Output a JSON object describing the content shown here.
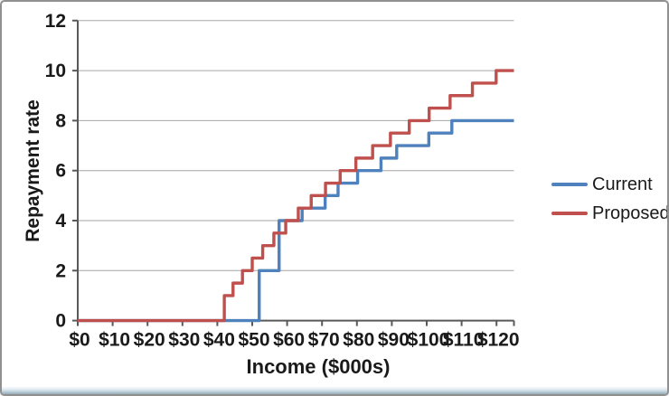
{
  "window": {
    "background": "#FFFFFF",
    "border_color": "#909090",
    "footer_edge_colors": [
      "#FFFFFF",
      "#C9DAE3",
      "#93AAB6"
    ]
  },
  "chart_data": {
    "type": "line",
    "subtype": "step",
    "title": "",
    "xlabel": "Income ($000s)",
    "ylabel": "Repayment rate",
    "xlim": [
      0,
      125
    ],
    "ylim": [
      0,
      12
    ],
    "x_tick_values": [
      0,
      10,
      20,
      30,
      40,
      50,
      60,
      70,
      80,
      90,
      100,
      110,
      120
    ],
    "x_tick_labels": [
      "$0",
      "$10",
      "$20",
      "$30",
      "$40",
      "$50",
      "$60",
      "$70",
      "$80",
      "$90",
      "$100",
      "$110",
      "$120"
    ],
    "x_axis_end_tick": 125,
    "y_tick_values": [
      0,
      2,
      4,
      6,
      8,
      10,
      12
    ],
    "grid": "horizontal",
    "legend_position": "right",
    "series": [
      {
        "name": "Current",
        "color": "#4F81BD",
        "steps": [
          {
            "income_k": 0,
            "rate": 0
          },
          {
            "income_k": 52.0,
            "rate": 2.0
          },
          {
            "income_k": 57.7,
            "rate": 4.0
          },
          {
            "income_k": 64.3,
            "rate": 4.5
          },
          {
            "income_k": 70.9,
            "rate": 5.0
          },
          {
            "income_k": 74.6,
            "rate": 5.5
          },
          {
            "income_k": 80.2,
            "rate": 6.0
          },
          {
            "income_k": 86.9,
            "rate": 6.5
          },
          {
            "income_k": 91.4,
            "rate": 7.0
          },
          {
            "income_k": 100.6,
            "rate": 7.5
          },
          {
            "income_k": 107.2,
            "rate": 8.0
          }
        ]
      },
      {
        "name": "Proposed",
        "color": "#C0504D",
        "steps": [
          {
            "income_k": 0,
            "rate": 0
          },
          {
            "income_k": 42.0,
            "rate": 1.0
          },
          {
            "income_k": 44.5,
            "rate": 1.5
          },
          {
            "income_k": 47.2,
            "rate": 2.0
          },
          {
            "income_k": 50.0,
            "rate": 2.5
          },
          {
            "income_k": 53.0,
            "rate": 3.0
          },
          {
            "income_k": 56.2,
            "rate": 3.5
          },
          {
            "income_k": 59.6,
            "rate": 4.0
          },
          {
            "income_k": 63.2,
            "rate": 4.5
          },
          {
            "income_k": 66.9,
            "rate": 5.0
          },
          {
            "income_k": 71.0,
            "rate": 5.5
          },
          {
            "income_k": 75.2,
            "rate": 6.0
          },
          {
            "income_k": 79.7,
            "rate": 6.5
          },
          {
            "income_k": 84.5,
            "rate": 7.0
          },
          {
            "income_k": 89.6,
            "rate": 7.5
          },
          {
            "income_k": 95.0,
            "rate": 8.0
          },
          {
            "income_k": 100.7,
            "rate": 8.5
          },
          {
            "income_k": 106.7,
            "rate": 9.0
          },
          {
            "income_k": 113.1,
            "rate": 9.5
          },
          {
            "income_k": 119.9,
            "rate": 10.0
          }
        ]
      }
    ],
    "colors": {
      "gridline": "#A6A6A6",
      "axis": "#595959",
      "text": "#1A1A1A"
    }
  }
}
